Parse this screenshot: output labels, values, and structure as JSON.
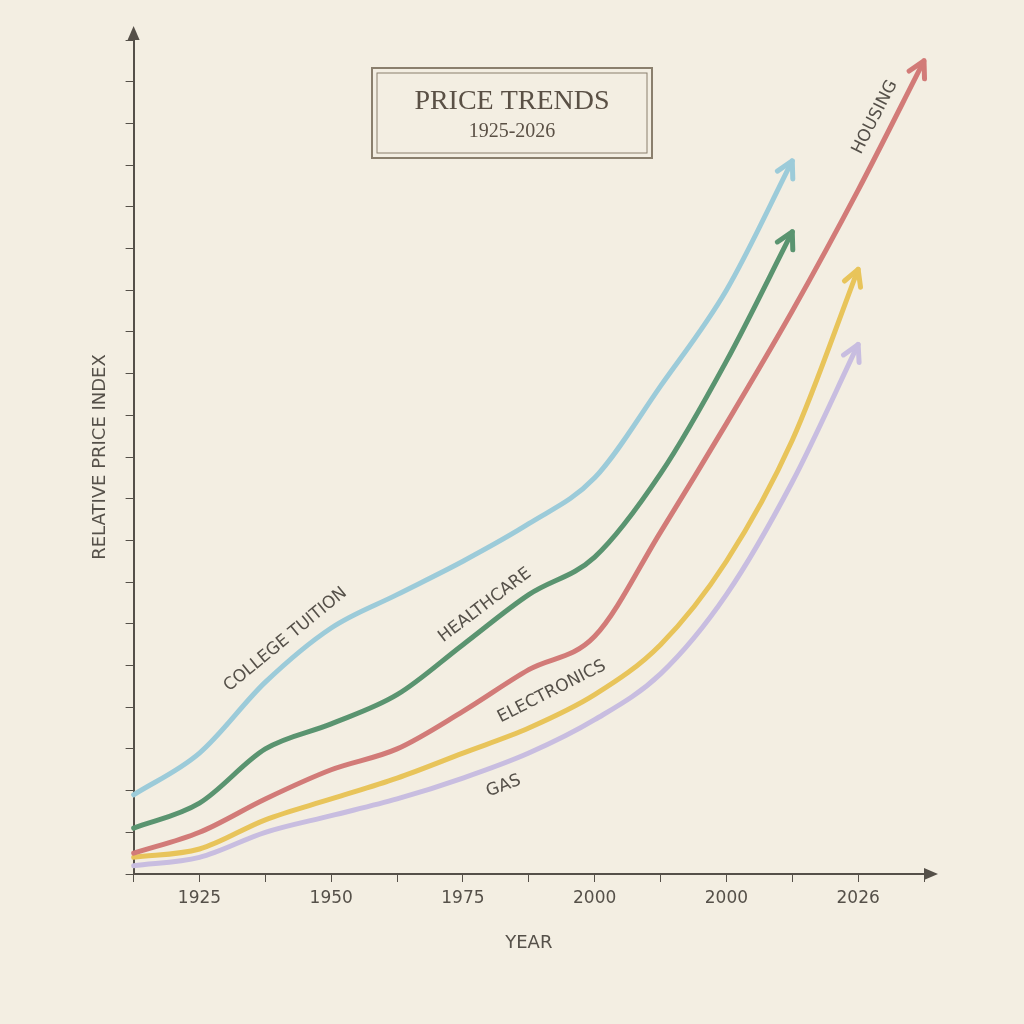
{
  "chart_data": {
    "type": "line",
    "title": "PRICE TRENDS",
    "subtitle": "1925-2026",
    "x_label": "YEAR",
    "y_label": "RELATIVE PRICE INDEX",
    "categories": [
      null,
      "1925",
      null,
      "1950",
      null,
      "1975",
      null,
      "2000",
      null,
      "2000",
      null,
      "2026",
      null
    ],
    "series": [
      {
        "name": "COLLEGE TUITION",
        "color": "#9ccbd9",
        "values": [
          1.9,
          2.9,
          4.6,
          5.9,
          6.7,
          7.5,
          8.4,
          9.5,
          11.7,
          14.0,
          17.1,
          null,
          null
        ]
      },
      {
        "name": "HEALTHCARE",
        "color": "#5a9470",
        "values": [
          1.1,
          1.7,
          3.0,
          3.6,
          4.3,
          5.5,
          6.7,
          7.6,
          9.6,
          12.3,
          15.4,
          null,
          null
        ]
      },
      {
        "name": "HOUSING",
        "color": "#d27b78",
        "values": [
          0.5,
          1.0,
          1.8,
          2.5,
          3.0,
          3.9,
          4.9,
          5.7,
          8.2,
          10.8,
          13.5,
          16.4,
          19.5
        ]
      },
      {
        "name": "ELECTRONICS",
        "color": "#e8c45a",
        "values": [
          0.4,
          0.6,
          1.3,
          1.8,
          2.3,
          2.9,
          3.5,
          4.3,
          5.5,
          7.5,
          10.4,
          14.5,
          null
        ]
      },
      {
        "name": "GAS",
        "color": "#c8bde0",
        "values": [
          0.2,
          0.4,
          1.0,
          1.4,
          1.8,
          2.3,
          2.9,
          3.7,
          4.8,
          6.7,
          9.4,
          12.7,
          null
        ]
      }
    ],
    "ylim": [
      0,
      20
    ],
    "yticks": [
      0,
      1,
      2,
      3,
      4,
      5,
      6,
      7,
      8,
      9,
      10,
      11,
      12,
      13,
      14,
      15,
      16,
      17,
      18,
      19,
      20
    ],
    "grid": false,
    "tick_labels": "x",
    "marker": "none",
    "line_style": "solid"
  }
}
